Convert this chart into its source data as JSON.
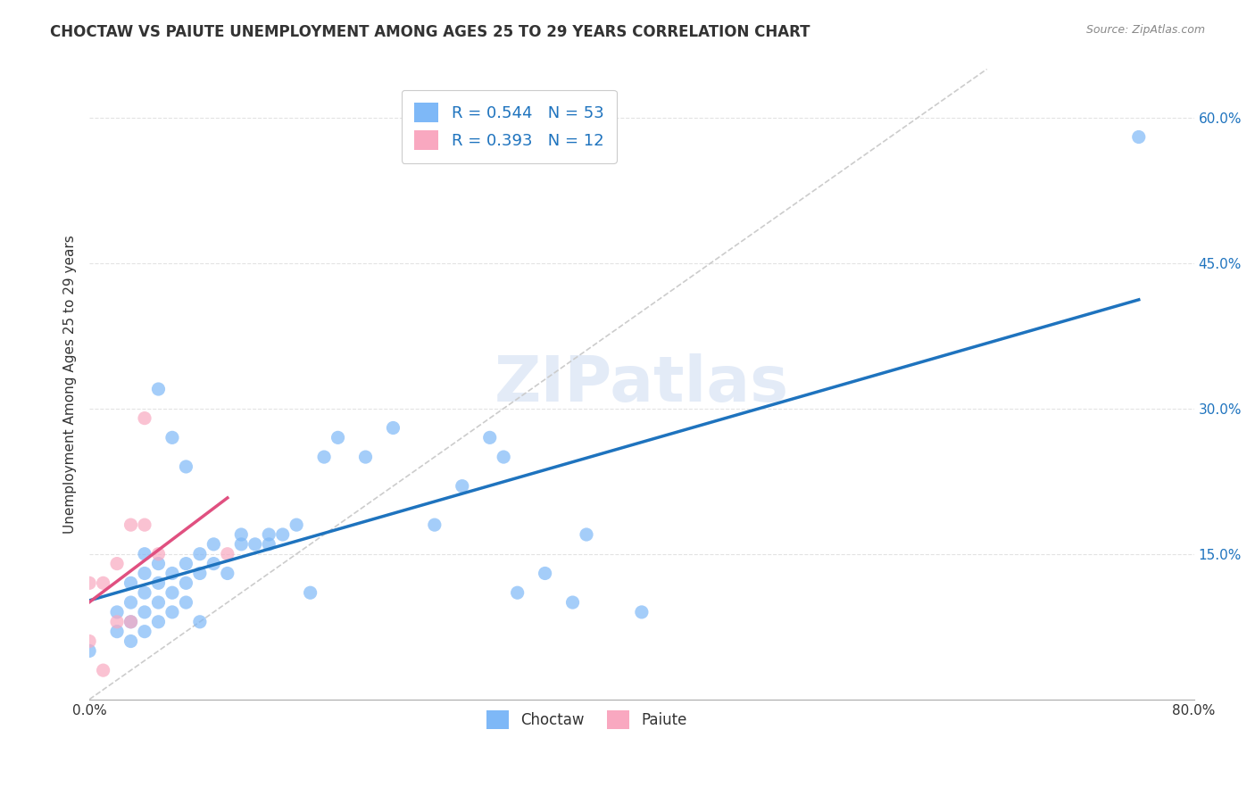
{
  "title": "CHOCTAW VS PAIUTE UNEMPLOYMENT AMONG AGES 25 TO 29 YEARS CORRELATION CHART",
  "source": "Source: ZipAtlas.com",
  "ylabel": "Unemployment Among Ages 25 to 29 years",
  "xlabel": "",
  "xlim": [
    0.0,
    0.8
  ],
  "ylim": [
    0.0,
    0.65
  ],
  "xticks": [
    0.0,
    0.1,
    0.2,
    0.3,
    0.4,
    0.5,
    0.6,
    0.7,
    0.8
  ],
  "xticklabels": [
    "0.0%",
    "",
    "",
    "",
    "",
    "",
    "",
    "",
    "80.0%"
  ],
  "ytick_positions": [
    0.15,
    0.3,
    0.45,
    0.6
  ],
  "ytick_labels": [
    "15.0%",
    "30.0%",
    "45.0%",
    "60.0%"
  ],
  "choctaw_R": 0.544,
  "choctaw_N": 53,
  "paiute_R": 0.393,
  "paiute_N": 12,
  "choctaw_color": "#7EB8F7",
  "paiute_color": "#F9A8C0",
  "choctaw_line_color": "#1E73BE",
  "paiute_line_color": "#E05080",
  "diagonal_color": "#CCCCCC",
  "watermark": "ZIPatlas",
  "watermark_color": "#C8D8F0",
  "choctaw_x": [
    0.0,
    0.02,
    0.02,
    0.03,
    0.03,
    0.03,
    0.03,
    0.04,
    0.04,
    0.04,
    0.04,
    0.04,
    0.05,
    0.05,
    0.05,
    0.05,
    0.05,
    0.06,
    0.06,
    0.06,
    0.06,
    0.07,
    0.07,
    0.07,
    0.07,
    0.08,
    0.08,
    0.08,
    0.09,
    0.09,
    0.1,
    0.11,
    0.11,
    0.12,
    0.13,
    0.13,
    0.14,
    0.15,
    0.16,
    0.17,
    0.18,
    0.2,
    0.22,
    0.25,
    0.27,
    0.29,
    0.3,
    0.31,
    0.33,
    0.35,
    0.36,
    0.4,
    0.76
  ],
  "choctaw_y": [
    0.05,
    0.07,
    0.09,
    0.06,
    0.08,
    0.1,
    0.12,
    0.07,
    0.09,
    0.11,
    0.13,
    0.15,
    0.08,
    0.1,
    0.12,
    0.14,
    0.32,
    0.09,
    0.11,
    0.13,
    0.27,
    0.1,
    0.12,
    0.14,
    0.24,
    0.08,
    0.13,
    0.15,
    0.14,
    0.16,
    0.13,
    0.16,
    0.17,
    0.16,
    0.16,
    0.17,
    0.17,
    0.18,
    0.11,
    0.25,
    0.27,
    0.25,
    0.28,
    0.18,
    0.22,
    0.27,
    0.25,
    0.11,
    0.13,
    0.1,
    0.17,
    0.09,
    0.58
  ],
  "paiute_x": [
    0.0,
    0.0,
    0.01,
    0.01,
    0.02,
    0.02,
    0.03,
    0.03,
    0.04,
    0.04,
    0.05,
    0.1
  ],
  "paiute_y": [
    0.06,
    0.12,
    0.03,
    0.12,
    0.08,
    0.14,
    0.08,
    0.18,
    0.18,
    0.29,
    0.15,
    0.15
  ],
  "background_color": "#FFFFFF",
  "grid_color": "#DDDDDD"
}
